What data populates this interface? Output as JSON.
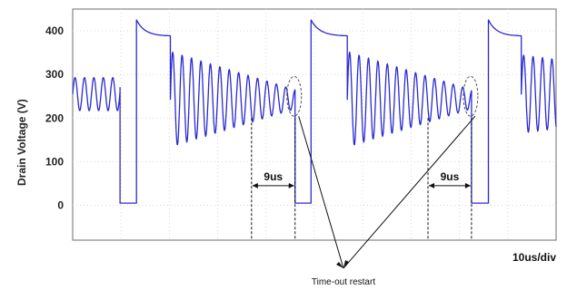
{
  "chart_data": {
    "type": "line",
    "title": "",
    "ylabel": "Drain Voltage (V)",
    "xlabel": "10us/div",
    "ylim": [
      -80,
      450
    ],
    "yticks": [
      0,
      100,
      200,
      300,
      400
    ],
    "xlim": [
      0,
      100
    ],
    "x_unit": "us",
    "grid": true,
    "series": [
      {
        "color": "#2a2ad0",
        "segments": [
          {
            "kind": "ringing",
            "x0": 0.0,
            "x1": 9.8,
            "center": 255,
            "amp0": 38,
            "amp1": 38,
            "period": 1.95
          },
          {
            "kind": "line",
            "points": [
              [
                9.8,
                270
              ],
              [
                9.8,
                5
              ],
              [
                13.2,
                5
              ],
              [
                13.2,
                410
              ]
            ]
          },
          {
            "kind": "decay",
            "x0": 13.2,
            "x1": 20.2,
            "v0": 425,
            "v1": 388
          },
          {
            "kind": "line",
            "points": [
              [
                20.2,
                388
              ],
              [
                20.2,
                330
              ]
            ]
          },
          {
            "kind": "ringing",
            "x0": 20.2,
            "x1": 46.0,
            "center": 243,
            "amp0": 110,
            "amp1": 22,
            "period": 1.95
          },
          {
            "kind": "line",
            "points": [
              [
                46.0,
                240
              ],
              [
                46.0,
                5
              ],
              [
                49.3,
                5
              ],
              [
                49.3,
                410
              ]
            ]
          },
          {
            "kind": "decay",
            "x0": 49.3,
            "x1": 56.8,
            "v0": 425,
            "v1": 388
          },
          {
            "kind": "line",
            "points": [
              [
                56.8,
                388
              ],
              [
                56.8,
                330
              ]
            ]
          },
          {
            "kind": "ringing",
            "x0": 56.8,
            "x1": 82.5,
            "center": 243,
            "amp0": 110,
            "amp1": 22,
            "period": 1.95
          },
          {
            "kind": "line",
            "points": [
              [
                82.5,
                240
              ],
              [
                82.5,
                5
              ],
              [
                86.0,
                5
              ],
              [
                86.0,
                410
              ]
            ]
          },
          {
            "kind": "decay",
            "x0": 86.0,
            "x1": 92.8,
            "v0": 425,
            "v1": 388
          },
          {
            "kind": "line",
            "points": [
              [
                92.8,
                388
              ],
              [
                92.8,
                320
              ]
            ]
          },
          {
            "kind": "ringing",
            "x0": 92.8,
            "x1": 100.0,
            "center": 255,
            "amp0": 90,
            "amp1": 80,
            "period": 1.95
          }
        ]
      }
    ],
    "annotations": [
      {
        "label": "9us",
        "x0": 37.0,
        "x1": 46.0,
        "y": 45
      },
      {
        "label": "9us",
        "x0": 73.5,
        "x1": 82.5,
        "y": 45
      }
    ],
    "callout": {
      "label": "Time-out restart",
      "ellipses": [
        {
          "x": 46.0,
          "y": 250
        },
        {
          "x": 82.5,
          "y": 250
        }
      ]
    }
  }
}
